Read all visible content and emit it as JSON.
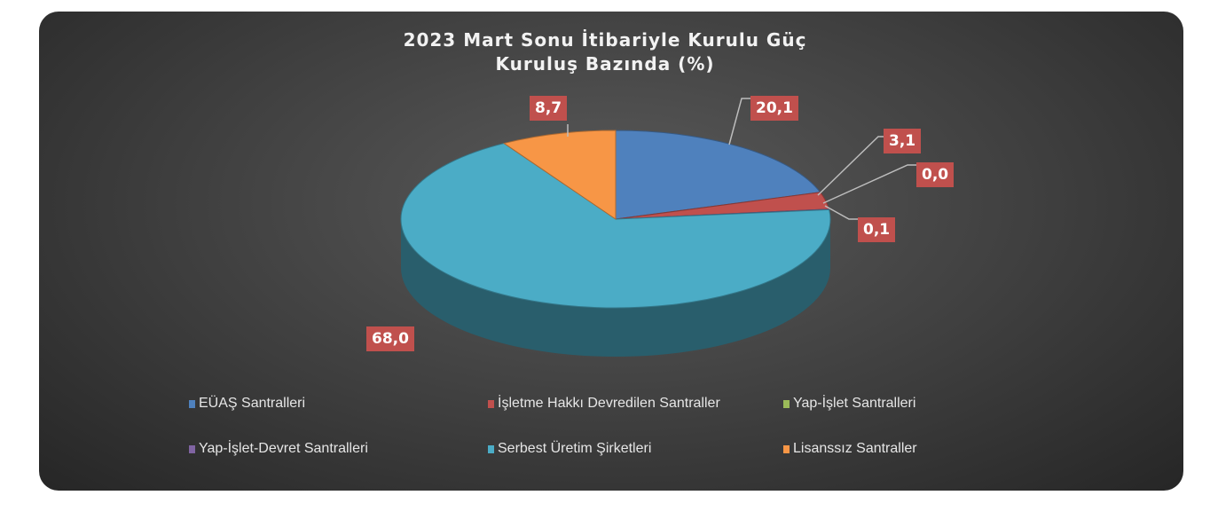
{
  "chart_data": {
    "type": "pie",
    "title_line1": "2023 Mart Sonu İtibariyle Kurulu Güç",
    "title_line2": "Kuruluş Bazında (%)",
    "slices": [
      {
        "name": "EÜAŞ Santralleri",
        "value": 20.1,
        "label": "20,1",
        "color": "#4f81bd"
      },
      {
        "name": "İşletme Hakkı Devredilen Santraller",
        "value": 3.1,
        "label": "3,1",
        "color": "#c0504d"
      },
      {
        "name": "Yap-İşlet Santralleri",
        "value": 0.0,
        "label": "0,0",
        "color": "#9bbb59"
      },
      {
        "name": "Yap-İşlet-Devret Santralleri",
        "value": 0.1,
        "label": "0,1",
        "color": "#8064a2"
      },
      {
        "name": "Serbest Üretim Şirketleri",
        "value": 68.0,
        "label": "68,0",
        "color": "#4bacc6"
      },
      {
        "name": "Lisanssız Santraller",
        "value": 8.7,
        "label": "8,7",
        "color": "#f79646"
      }
    ],
    "legend_position": "bottom",
    "style": "3d-pie"
  }
}
